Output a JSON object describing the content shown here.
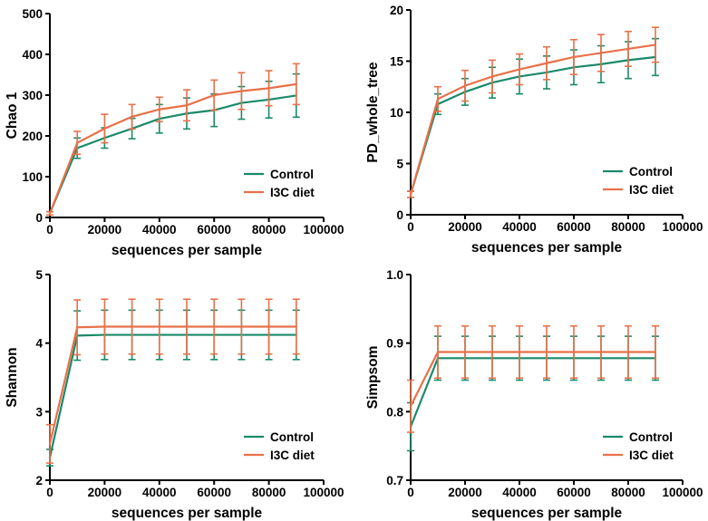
{
  "chart_data": [
    {
      "type": "line",
      "xlabel": "sequences per sample",
      "ylabel": "Chao 1",
      "xlim": [
        0,
        100000
      ],
      "ylim": [
        0,
        500
      ],
      "xticks": [
        0,
        20000,
        40000,
        60000,
        80000,
        100000
      ],
      "xtick_labels": [
        "0",
        "20000",
        "40000",
        "60000",
        "80000",
        "100000"
      ],
      "yticks": [
        0,
        100,
        200,
        300,
        400,
        500
      ],
      "ytick_labels": [
        "0",
        "100",
        "200",
        "300",
        "400",
        "500"
      ],
      "grid": false,
      "legend_position": "bottom-right",
      "x": [
        0,
        10000,
        20000,
        30000,
        40000,
        50000,
        60000,
        70000,
        80000,
        90000
      ],
      "series": [
        {
          "name": "Control",
          "color": "#1a8a6a",
          "values": [
            10,
            170,
            195,
            218,
            242,
            255,
            263,
            281,
            289,
            299
          ],
          "errors": [
            4,
            25,
            25,
            25,
            35,
            38,
            40,
            40,
            45,
            53
          ]
        },
        {
          "name": "I3C diet",
          "color": "#e8714a",
          "values": [
            10,
            183,
            218,
            247,
            265,
            275,
            300,
            310,
            317,
            327
          ],
          "errors": [
            4,
            28,
            35,
            30,
            30,
            38,
            37,
            45,
            43,
            50
          ]
        }
      ]
    },
    {
      "type": "line",
      "xlabel": "sequences per sample",
      "ylabel": "PD_whole_tree",
      "xlim": [
        0,
        100000
      ],
      "ylim": [
        0,
        20
      ],
      "xticks": [
        0,
        20000,
        40000,
        60000,
        80000,
        100000
      ],
      "xtick_labels": [
        "0",
        "20000",
        "40000",
        "60000",
        "80000",
        "100000"
      ],
      "yticks": [
        0,
        5,
        10,
        15,
        20
      ],
      "ytick_labels": [
        "0",
        "5",
        "10",
        "15",
        "20"
      ],
      "grid": false,
      "legend_position": "bottom-right",
      "x": [
        0,
        10000,
        20000,
        30000,
        40000,
        50000,
        60000,
        70000,
        80000,
        90000
      ],
      "series": [
        {
          "name": "Control",
          "color": "#1a8a6a",
          "values": [
            2.0,
            10.8,
            12.0,
            12.9,
            13.5,
            13.9,
            14.4,
            14.7,
            15.1,
            15.4
          ],
          "errors": [
            0.3,
            1.0,
            1.3,
            1.5,
            1.7,
            1.6,
            1.7,
            1.8,
            1.8,
            1.8
          ]
        },
        {
          "name": "I3C diet",
          "color": "#e8714a",
          "values": [
            2.0,
            11.3,
            12.6,
            13.5,
            14.2,
            14.8,
            15.4,
            15.8,
            16.2,
            16.6
          ],
          "errors": [
            0.3,
            1.2,
            1.5,
            1.6,
            1.5,
            1.6,
            1.7,
            1.8,
            1.7,
            1.7
          ]
        }
      ]
    },
    {
      "type": "line",
      "xlabel": "sequences per sample",
      "ylabel": "Shannon",
      "xlim": [
        0,
        100000
      ],
      "ylim": [
        2,
        5
      ],
      "xticks": [
        0,
        20000,
        40000,
        60000,
        80000,
        100000
      ],
      "xtick_labels": [
        "0",
        "20000",
        "40000",
        "60000",
        "80000",
        "100000"
      ],
      "yticks": [
        2,
        3,
        4,
        5
      ],
      "ytick_labels": [
        "2",
        "3",
        "4",
        "5"
      ],
      "grid": false,
      "legend_position": "bottom-right",
      "x": [
        0,
        10000,
        20000,
        30000,
        40000,
        50000,
        60000,
        70000,
        80000,
        90000
      ],
      "series": [
        {
          "name": "Control",
          "color": "#1a8a6a",
          "values": [
            2.33,
            4.11,
            4.12,
            4.12,
            4.12,
            4.12,
            4.12,
            4.12,
            4.12,
            4.12
          ],
          "errors": [
            0.12,
            0.36,
            0.36,
            0.36,
            0.36,
            0.36,
            0.36,
            0.36,
            0.36,
            0.36
          ]
        },
        {
          "name": "I3C diet",
          "color": "#e8714a",
          "values": [
            2.53,
            4.23,
            4.24,
            4.24,
            4.24,
            4.24,
            4.24,
            4.24,
            4.24,
            4.24
          ],
          "errors": [
            0.28,
            0.4,
            0.4,
            0.4,
            0.4,
            0.4,
            0.4,
            0.4,
            0.4,
            0.4
          ]
        }
      ]
    },
    {
      "type": "line",
      "xlabel": "sequences per sample",
      "ylabel": "Simpsom",
      "xlim": [
        0,
        100000
      ],
      "ylim": [
        0.7,
        1.0
      ],
      "xticks": [
        0,
        20000,
        40000,
        60000,
        80000,
        100000
      ],
      "xtick_labels": [
        "0",
        "20000",
        "40000",
        "60000",
        "80000",
        "100000"
      ],
      "yticks": [
        0.7,
        0.8,
        0.9,
        1.0
      ],
      "ytick_labels": [
        "0.7",
        "0.8",
        "0.9",
        "1.0"
      ],
      "grid": false,
      "legend_position": "bottom-right",
      "x": [
        0,
        10000,
        20000,
        30000,
        40000,
        50000,
        60000,
        70000,
        80000,
        90000
      ],
      "series": [
        {
          "name": "Control",
          "color": "#1a8a6a",
          "values": [
            0.778,
            0.878,
            0.878,
            0.878,
            0.878,
            0.878,
            0.878,
            0.878,
            0.878,
            0.878
          ],
          "errors": [
            0.035,
            0.032,
            0.032,
            0.032,
            0.032,
            0.032,
            0.032,
            0.032,
            0.032,
            0.032
          ]
        },
        {
          "name": "I3C diet",
          "color": "#e8714a",
          "values": [
            0.808,
            0.887,
            0.887,
            0.887,
            0.887,
            0.887,
            0.887,
            0.887,
            0.887,
            0.887
          ],
          "errors": [
            0.038,
            0.038,
            0.038,
            0.038,
            0.038,
            0.038,
            0.038,
            0.038,
            0.038,
            0.038
          ]
        }
      ]
    }
  ]
}
